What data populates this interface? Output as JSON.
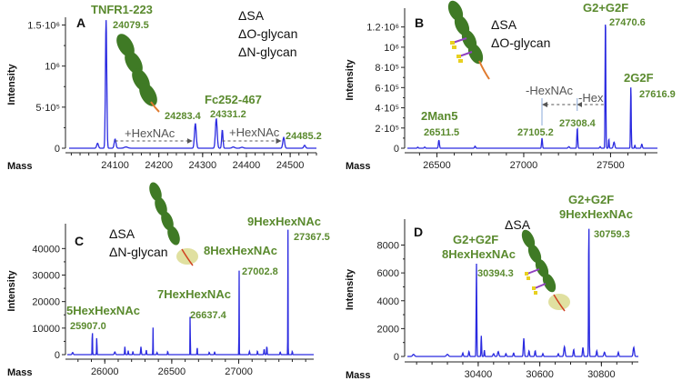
{
  "chart_data": [
    {
      "id": "A",
      "type": "line",
      "panel_label": "A",
      "xlabel": "Mass",
      "ylabel": "Intensity",
      "xlim": [
        23995,
        24560
      ],
      "ylim": [
        0,
        1550000
      ],
      "x_ticks": [
        24100,
        24200,
        24300,
        24400,
        24500
      ],
      "x_tick_labels": [
        "24100",
        "24200",
        "24300",
        "24400",
        "24500"
      ],
      "y_ticks": [
        0,
        500000,
        1000000,
        1500000
      ],
      "y_tick_labels": [
        "0",
        "5·10⁵",
        "10⁶",
        "1.5·10⁶"
      ],
      "series": [
        {
          "name": "spectrum",
          "color": "#2a2ae0",
          "peaks": [
            {
              "x": 24060,
              "y": 60000,
              "w": 4
            },
            {
              "x": 24079.5,
              "y": 1560000,
              "w": 3
            },
            {
              "x": 24100,
              "y": 110000,
              "w": 4
            },
            {
              "x": 24125,
              "y": 15000,
              "w": 8
            },
            {
              "x": 24283.4,
              "y": 300000,
              "w": 4
            },
            {
              "x": 24331.2,
              "y": 360000,
              "w": 4
            },
            {
              "x": 24345,
              "y": 220000,
              "w": 3
            },
            {
              "x": 24370,
              "y": 15000,
              "w": 6
            },
            {
              "x": 24390,
              "y": 12000,
              "w": 6
            },
            {
              "x": 24485.2,
              "y": 130000,
              "w": 4
            },
            {
              "x": 24533,
              "y": 35000,
              "w": 4
            }
          ]
        }
      ],
      "annotations": [
        {
          "text": "TNFR1-223",
          "style": "big"
        },
        {
          "text": "24079.5",
          "style": "small"
        },
        {
          "text": "24283.4",
          "style": "small"
        },
        {
          "text": "Fc252-467",
          "style": "big"
        },
        {
          "text": "24331.2",
          "style": "small"
        },
        {
          "text": "24485.2",
          "style": "small"
        }
      ],
      "arrows": [
        {
          "label": "+HexNAc",
          "from": 24100,
          "to": 24275
        },
        {
          "label": "+HexNAc",
          "from": 24345,
          "to": 24478
        }
      ],
      "notes": [
        "ΔSA",
        "ΔO-glycan",
        "ΔN-glycan"
      ]
    },
    {
      "id": "B",
      "type": "line",
      "panel_label": "B",
      "xlabel": "Mass",
      "ylabel": "Intensity",
      "xlim": [
        26330,
        27770
      ],
      "ylim": [
        0,
        1350000
      ],
      "x_ticks": [
        26500,
        27000,
        27500
      ],
      "x_tick_labels": [
        "26500",
        "27000",
        "27500"
      ],
      "minor_step": 100,
      "y_ticks": [
        0,
        200000,
        400000,
        600000,
        800000,
        1000000,
        1200000
      ],
      "y_tick_labels": [
        "0",
        "2·10⁵",
        "4·10⁵",
        "6·10⁵",
        "8·10⁵",
        "10⁶",
        "1.2·10⁶"
      ],
      "series": [
        {
          "name": "spectrum",
          "color": "#2a2ae0",
          "peaks": [
            {
              "x": 26390,
              "y": 10000,
              "w": 6
            },
            {
              "x": 26430,
              "y": 12000,
              "w": 6
            },
            {
              "x": 26511.5,
              "y": 80000,
              "w": 6
            },
            {
              "x": 26720,
              "y": 20000,
              "w": 6
            },
            {
              "x": 27105.2,
              "y": 100000,
              "w": 5
            },
            {
              "x": 27260,
              "y": 15000,
              "w": 8
            },
            {
              "x": 27308.4,
              "y": 200000,
              "w": 5
            },
            {
              "x": 27440,
              "y": 15000,
              "w": 6
            },
            {
              "x": 27470.6,
              "y": 1330000,
              "w": 4
            },
            {
              "x": 27490,
              "y": 90000,
              "w": 4
            },
            {
              "x": 27520,
              "y": 60000,
              "w": 8
            },
            {
              "x": 27616.9,
              "y": 620000,
              "w": 4
            },
            {
              "x": 27640,
              "y": 30000,
              "w": 4
            },
            {
              "x": 27680,
              "y": 40000,
              "w": 6
            }
          ]
        }
      ],
      "annotations": [
        {
          "text": "G2+G2F",
          "style": "big"
        },
        {
          "text": "27470.6",
          "style": "small"
        },
        {
          "text": "2G2F",
          "style": "big"
        },
        {
          "text": "27616.9",
          "style": "small"
        },
        {
          "text": "2Man5",
          "style": "big"
        },
        {
          "text": "26511.5",
          "style": "small"
        },
        {
          "text": "27105.2",
          "style": "small"
        },
        {
          "text": "27308.4",
          "style": "small"
        }
      ],
      "arrows": [
        {
          "label": "-HexNAc",
          "from": 27300,
          "to": 27110
        },
        {
          "label": "-Hex",
          "from": 27460,
          "to": 27310
        }
      ],
      "notes": [
        "ΔSA",
        "ΔO-glycan"
      ]
    },
    {
      "id": "C",
      "type": "line",
      "panel_label": "C",
      "xlabel": "Mass",
      "ylabel": "Intensity",
      "xlim": [
        25720,
        27560
      ],
      "ylim": [
        0,
        48000
      ],
      "x_ticks": [
        26000,
        26500,
        27000
      ],
      "x_tick_labels": [
        "26000",
        "26500",
        "27000"
      ],
      "minor_step": 100,
      "y_ticks": [
        0,
        10000,
        20000,
        30000,
        40000
      ],
      "y_tick_labels": [
        "0",
        "10000",
        "20000",
        "30000",
        "40000"
      ],
      "series": [
        {
          "name": "spectrum",
          "color": "#2a2ae0",
          "peaks": [
            {
              "x": 25760,
              "y": 800,
              "w": 8
            },
            {
              "x": 25907.0,
              "y": 9500,
              "w": 3
            },
            {
              "x": 25940,
              "y": 6500,
              "w": 3
            },
            {
              "x": 26075,
              "y": 1000,
              "w": 8
            },
            {
              "x": 26150,
              "y": 3000,
              "w": 4
            },
            {
              "x": 26175,
              "y": 1500,
              "w": 4
            },
            {
              "x": 26210,
              "y": 1200,
              "w": 4
            },
            {
              "x": 26270,
              "y": 3000,
              "w": 5
            },
            {
              "x": 26310,
              "y": 1800,
              "w": 4
            },
            {
              "x": 26360,
              "y": 11500,
              "w": 2
            },
            {
              "x": 26390,
              "y": 800,
              "w": 5
            },
            {
              "x": 26470,
              "y": 1200,
              "w": 4
            },
            {
              "x": 26637.4,
              "y": 19500,
              "w": 2
            },
            {
              "x": 26690,
              "y": 3000,
              "w": 3
            },
            {
              "x": 26780,
              "y": 900,
              "w": 5
            },
            {
              "x": 26820,
              "y": 1100,
              "w": 4
            },
            {
              "x": 27002.8,
              "y": 35000,
              "w": 2
            },
            {
              "x": 27080,
              "y": 1200,
              "w": 5
            },
            {
              "x": 27140,
              "y": 1400,
              "w": 4
            },
            {
              "x": 27190,
              "y": 2000,
              "w": 5
            },
            {
              "x": 27210,
              "y": 3200,
              "w": 4
            },
            {
              "x": 27310,
              "y": 1000,
              "w": 5
            },
            {
              "x": 27367.5,
              "y": 47500,
              "w": 2
            },
            {
              "x": 27400,
              "y": 1200,
              "w": 4
            }
          ]
        }
      ],
      "annotations": [
        {
          "text": "5HexHexNAc",
          "style": "big"
        },
        {
          "text": "25907.0",
          "style": "small"
        },
        {
          "text": "7HexHexNAc",
          "style": "big"
        },
        {
          "text": "26637.4",
          "style": "small"
        },
        {
          "text": "8HexHexNAc",
          "style": "big"
        },
        {
          "text": "27002.8",
          "style": "small"
        },
        {
          "text": "9HexHexNAc",
          "style": "big"
        },
        {
          "text": "27367.5",
          "style": "small"
        }
      ],
      "notes": [
        "ΔSA",
        "ΔN-glycan"
      ]
    },
    {
      "id": "D",
      "type": "line",
      "panel_label": "D",
      "xlabel": "Mass",
      "ylabel": "Intensity",
      "xlim": [
        30170,
        30920
      ],
      "ylim": [
        0,
        9600
      ],
      "x_ticks": [
        30400,
        30600,
        30800
      ],
      "x_tick_labels": [
        "30400",
        "30600",
        "30800"
      ],
      "minor_step": 50,
      "y_ticks": [
        0,
        2000,
        4000,
        6000,
        8000
      ],
      "y_tick_labels": [
        "0",
        "2000",
        "4000",
        "6000",
        "8000"
      ],
      "series": [
        {
          "name": "spectrum",
          "color": "#2a2ae0",
          "peaks": [
            {
              "x": 30190,
              "y": 150,
              "w": 6
            },
            {
              "x": 30300,
              "y": 150,
              "w": 6
            },
            {
              "x": 30350,
              "y": 250,
              "w": 3
            },
            {
              "x": 30370,
              "y": 350,
              "w": 3
            },
            {
              "x": 30394.3,
              "y": 6700,
              "w": 2
            },
            {
              "x": 30410,
              "y": 1500,
              "w": 2
            },
            {
              "x": 30420,
              "y": 450,
              "w": 2
            },
            {
              "x": 30450,
              "y": 200,
              "w": 4
            },
            {
              "x": 30465,
              "y": 350,
              "w": 4
            },
            {
              "x": 30490,
              "y": 200,
              "w": 3
            },
            {
              "x": 30515,
              "y": 250,
              "w": 3
            },
            {
              "x": 30548,
              "y": 1300,
              "w": 3
            },
            {
              "x": 30565,
              "y": 400,
              "w": 3
            },
            {
              "x": 30585,
              "y": 400,
              "w": 3
            },
            {
              "x": 30610,
              "y": 200,
              "w": 3
            },
            {
              "x": 30660,
              "y": 200,
              "w": 3
            },
            {
              "x": 30680,
              "y": 700,
              "w": 4
            },
            {
              "x": 30710,
              "y": 500,
              "w": 3
            },
            {
              "x": 30740,
              "y": 650,
              "w": 3
            },
            {
              "x": 30759.3,
              "y": 9500,
              "w": 2
            },
            {
              "x": 30785,
              "y": 400,
              "w": 3
            },
            {
              "x": 30810,
              "y": 300,
              "w": 4
            },
            {
              "x": 30855,
              "y": 300,
              "w": 3
            },
            {
              "x": 30905,
              "y": 650,
              "w": 4
            }
          ]
        }
      ],
      "annotations": [
        {
          "text": "G2+G2F",
          "style": "big"
        },
        {
          "text": "8HexHexNAc",
          "style": "big"
        },
        {
          "text": "30394.3",
          "style": "small"
        },
        {
          "text": "G2+G2F",
          "style": "big"
        },
        {
          "text": "9HexHexNAc",
          "style": "big"
        },
        {
          "text": "30759.3",
          "style": "small"
        }
      ],
      "notes": [
        "ΔSA"
      ]
    }
  ]
}
